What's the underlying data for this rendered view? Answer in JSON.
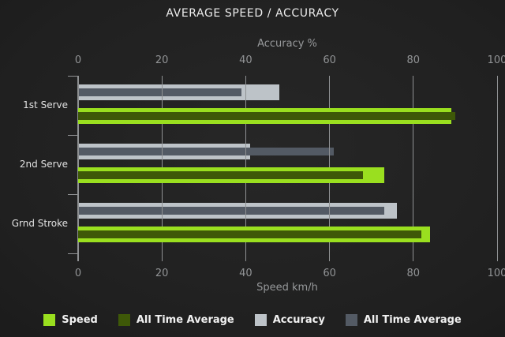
{
  "title": "AVERAGE SPEED / ACCURACY",
  "chart_data": {
    "type": "bar",
    "orientation": "horizontal",
    "title": "AVERAGE SPEED / ACCURACY",
    "categories": [
      "1st Serve",
      "2nd Serve",
      "Grnd Stroke"
    ],
    "axes": {
      "top": {
        "label": "Accuracy %",
        "ticks": [
          0,
          20,
          40,
          60,
          80,
          100
        ],
        "range": [
          0,
          100
        ]
      },
      "bottom": {
        "label": "Speed km/h",
        "ticks": [
          0,
          20,
          40,
          60,
          80,
          100
        ],
        "range": [
          0,
          100
        ]
      }
    },
    "series": [
      {
        "name": "Speed",
        "axis": "bottom",
        "role": "outer",
        "color": "#9adf1f",
        "values": [
          89,
          73,
          84
        ]
      },
      {
        "name": "All Time Average",
        "axis": "bottom",
        "role": "inner",
        "color": "#3e5808",
        "values": [
          90,
          68,
          82
        ]
      },
      {
        "name": "Accuracy",
        "axis": "top",
        "role": "outer",
        "color": "#bdc3c8",
        "values": [
          48,
          41,
          76
        ]
      },
      {
        "name": "All Time Average",
        "axis": "top",
        "role": "inner",
        "color": "#535a64",
        "values": [
          39,
          61,
          73
        ]
      }
    ],
    "legend_position": "bottom",
    "grid": true,
    "colors": {
      "background_center": "#272727",
      "background_edge": "#171717",
      "gridline": "#8f9193",
      "axis_text": "#97999b",
      "title_text": "#ececec"
    }
  }
}
